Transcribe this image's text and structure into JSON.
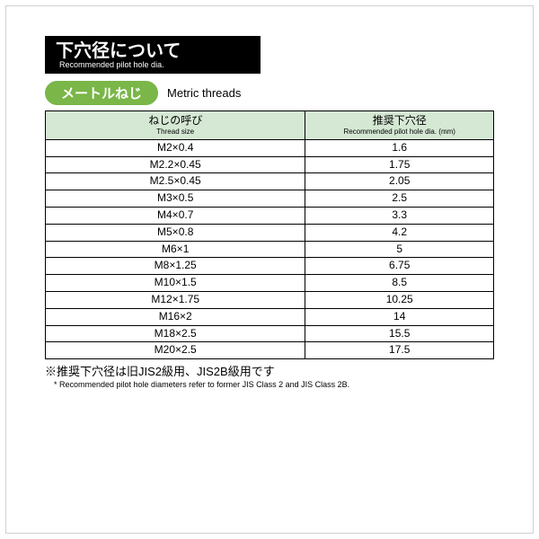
{
  "title": {
    "jp": "下穴径について",
    "en": "Recommended pilot hole dia."
  },
  "badge": {
    "jp": "メートルねじ",
    "en": "Metric threads"
  },
  "table": {
    "type": "table",
    "header_bg": "#d5e8d4",
    "border_color": "#000000",
    "columns": [
      {
        "jp": "ねじの呼び",
        "en": "Thread size",
        "width_pct": 58
      },
      {
        "jp": "推奨下穴径",
        "en": "Recommended\npilot hole dia.\n(mm)",
        "width_pct": 42
      }
    ],
    "rows": [
      [
        "M2×0.4",
        "1.6"
      ],
      [
        "M2.2×0.45",
        "1.75"
      ],
      [
        "M2.5×0.45",
        "2.05"
      ],
      [
        "M3×0.5",
        "2.5"
      ],
      [
        "M4×0.7",
        "3.3"
      ],
      [
        "M5×0.8",
        "4.2"
      ],
      [
        "M6×1",
        "5"
      ],
      [
        "M8×1.25",
        "6.75"
      ],
      [
        "M10×1.5",
        "8.5"
      ],
      [
        "M12×1.75",
        "10.25"
      ],
      [
        "M16×2",
        "14"
      ],
      [
        "M18×2.5",
        "15.5"
      ],
      [
        "M20×2.5",
        "17.5"
      ]
    ]
  },
  "note": {
    "jp": "※推奨下穴径は旧JIS2級用、JIS2B級用です",
    "en": "* Recommended pilot hole diameters refer to former JIS Class 2 and JIS Class 2B."
  },
  "colors": {
    "title_bg": "#000000",
    "title_fg": "#ffffff",
    "badge_bg": "#7ab648",
    "badge_fg": "#ffffff",
    "page_bg": "#ffffff"
  },
  "typography": {
    "title_jp_pt": 20,
    "title_en_pt": 9,
    "badge_jp_pt": 15,
    "badge_en_pt": 13,
    "cell_pt": 12,
    "hdr_en_pt": 8,
    "note_jp_pt": 13,
    "note_en_pt": 9
  }
}
